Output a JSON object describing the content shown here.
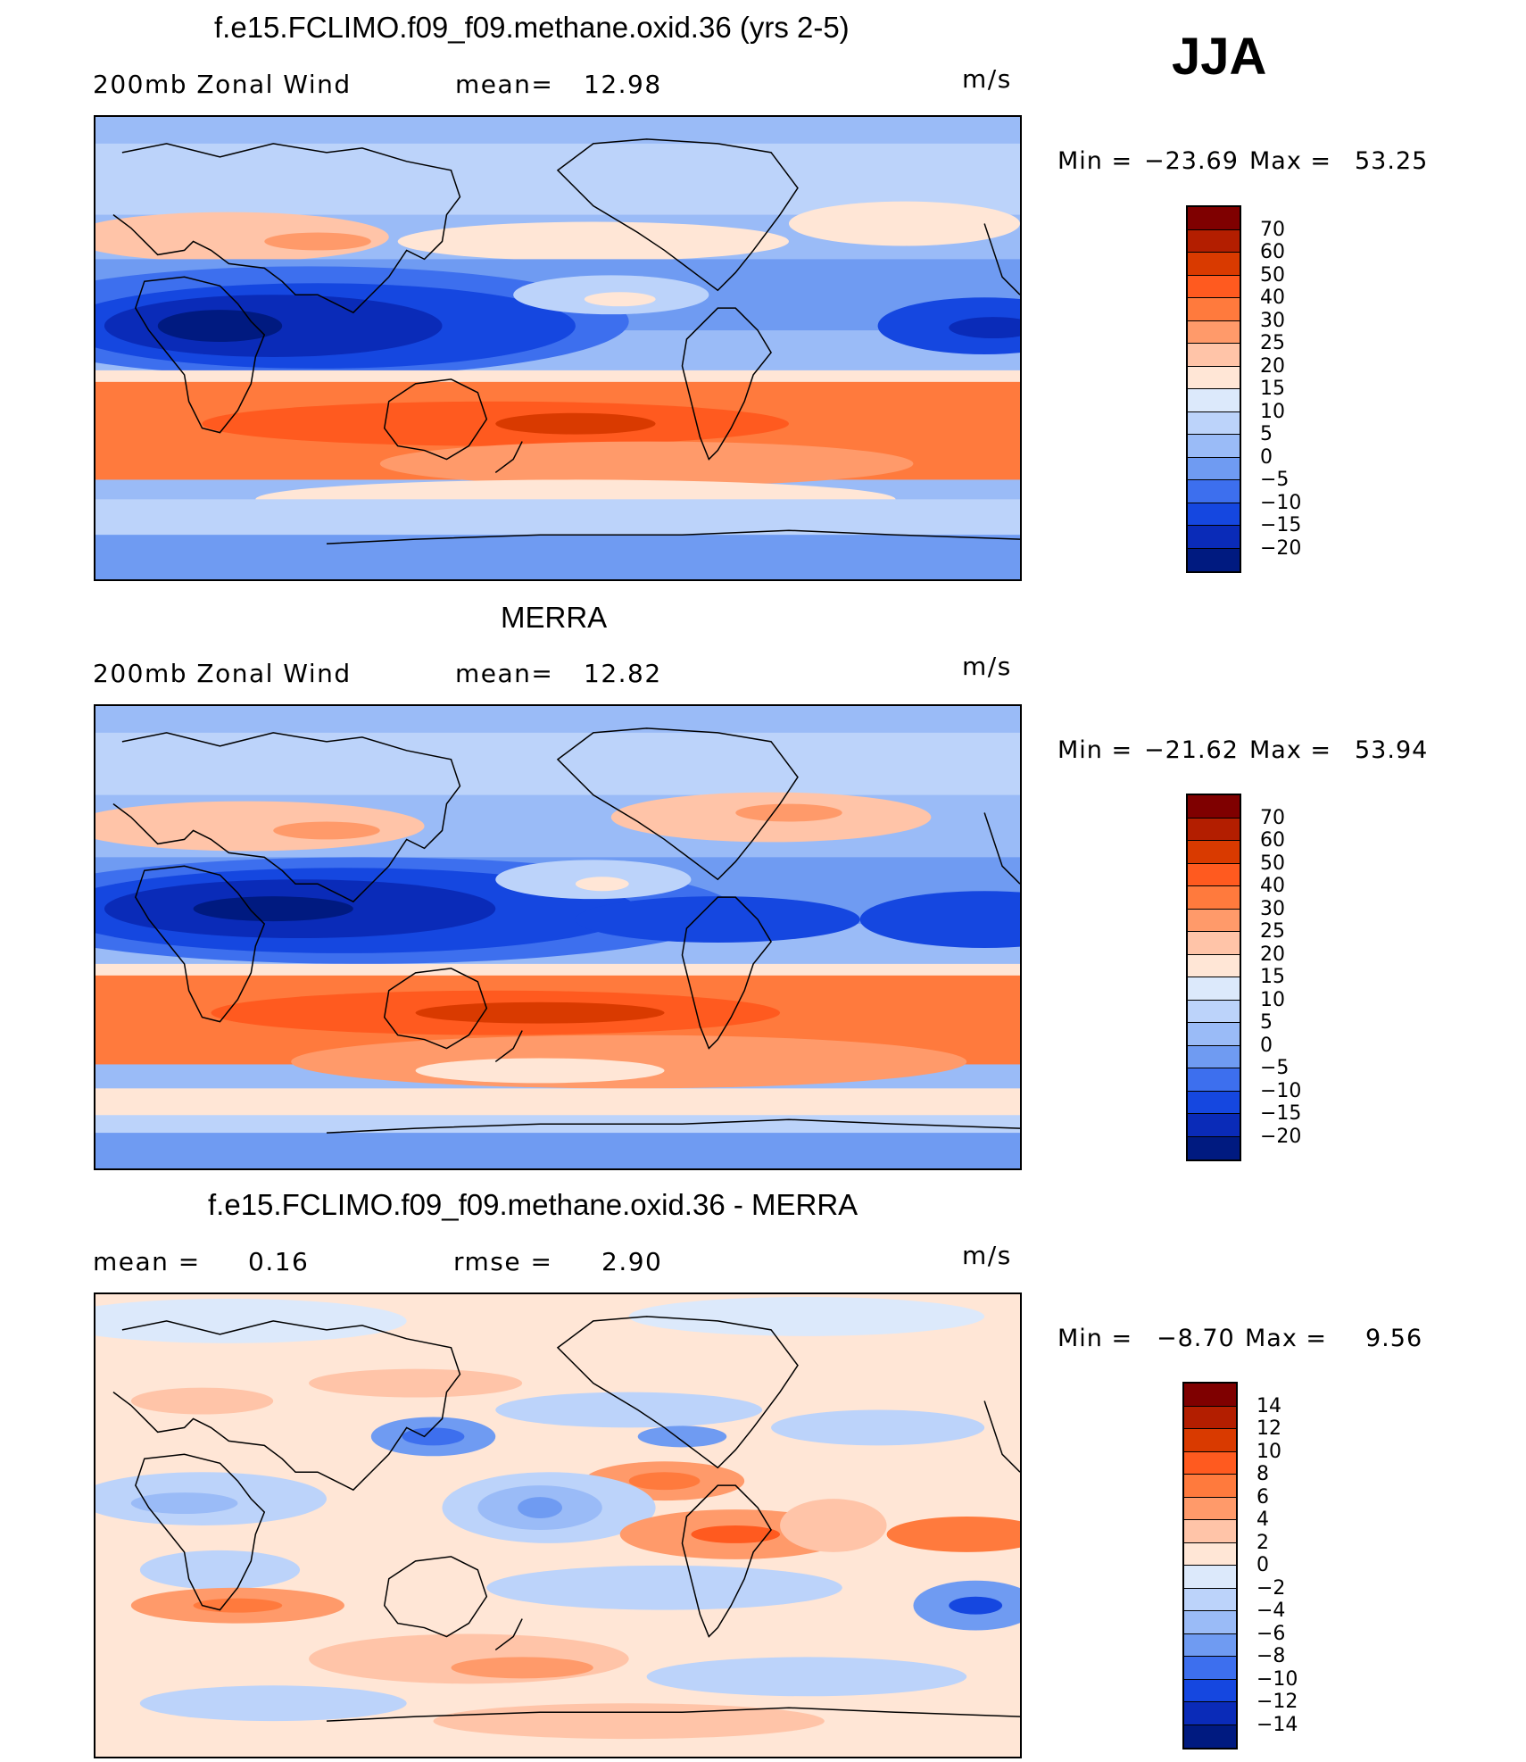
{
  "season": "JJA",
  "panels": [
    {
      "title": "f.e15.FCLIMO.f09_f09.methane.oxid.36 (yrs 2-5)",
      "left_label": "200mb Zonal Wind",
      "mid_label": "mean=",
      "mid_value": "12.98",
      "units": "m/s",
      "min_label": "Min =",
      "min_value": "−23.69",
      "max_label": "Max =",
      "max_value": "53.25",
      "colorbar": {
        "labels": [
          "70",
          "60",
          "50",
          "40",
          "30",
          "25",
          "20",
          "15",
          "10",
          "5",
          "0",
          "−5",
          "−10",
          "−15",
          "−20"
        ],
        "colors": [
          "#7f0000",
          "#b31e00",
          "#d93a00",
          "#ff5a1f",
          "#ff7a3d",
          "#ff9a6a",
          "#ffc4a8",
          "#ffe6d6",
          "#dce9fb",
          "#bcd3fa",
          "#9abbf7",
          "#6f9bf2",
          "#3d6fee",
          "#1547e0",
          "#0a2bb8",
          "#001a80"
        ]
      }
    },
    {
      "title": "MERRA",
      "left_label": "200mb Zonal Wind",
      "mid_label": "mean=",
      "mid_value": "12.82",
      "units": "m/s",
      "min_label": "Min =",
      "min_value": "−21.62",
      "max_label": "Max =",
      "max_value": "53.94",
      "colorbar": {
        "labels": [
          "70",
          "60",
          "50",
          "40",
          "30",
          "25",
          "20",
          "15",
          "10",
          "5",
          "0",
          "−5",
          "−10",
          "−15",
          "−20"
        ],
        "colors": [
          "#7f0000",
          "#b31e00",
          "#d93a00",
          "#ff5a1f",
          "#ff7a3d",
          "#ff9a6a",
          "#ffc4a8",
          "#ffe6d6",
          "#dce9fb",
          "#bcd3fa",
          "#9abbf7",
          "#6f9bf2",
          "#3d6fee",
          "#1547e0",
          "#0a2bb8",
          "#001a80"
        ]
      }
    },
    {
      "title": "f.e15.FCLIMO.f09_f09.methane.oxid.36 - MERRA",
      "left_label": "mean =",
      "left_value": "0.16",
      "mid_label": "rmse =",
      "mid_value": "2.90",
      "units": "m/s",
      "min_label": "Min =",
      "min_value": "−8.70",
      "max_label": "Max =",
      "max_value": "9.56",
      "colorbar": {
        "labels": [
          "14",
          "12",
          "10",
          "8",
          "6",
          "4",
          "2",
          "0",
          "−2",
          "−4",
          "−6",
          "−8",
          "−10",
          "−12",
          "−14"
        ],
        "colors": [
          "#7f0000",
          "#b31e00",
          "#d93a00",
          "#ff5a1f",
          "#ff7a3d",
          "#ff9a6a",
          "#ffc4a8",
          "#ffe6d6",
          "#dce9fb",
          "#bcd3fa",
          "#9abbf7",
          "#6f9bf2",
          "#3d6fee",
          "#1547e0",
          "#0a2bb8",
          "#001a80"
        ]
      }
    }
  ]
}
